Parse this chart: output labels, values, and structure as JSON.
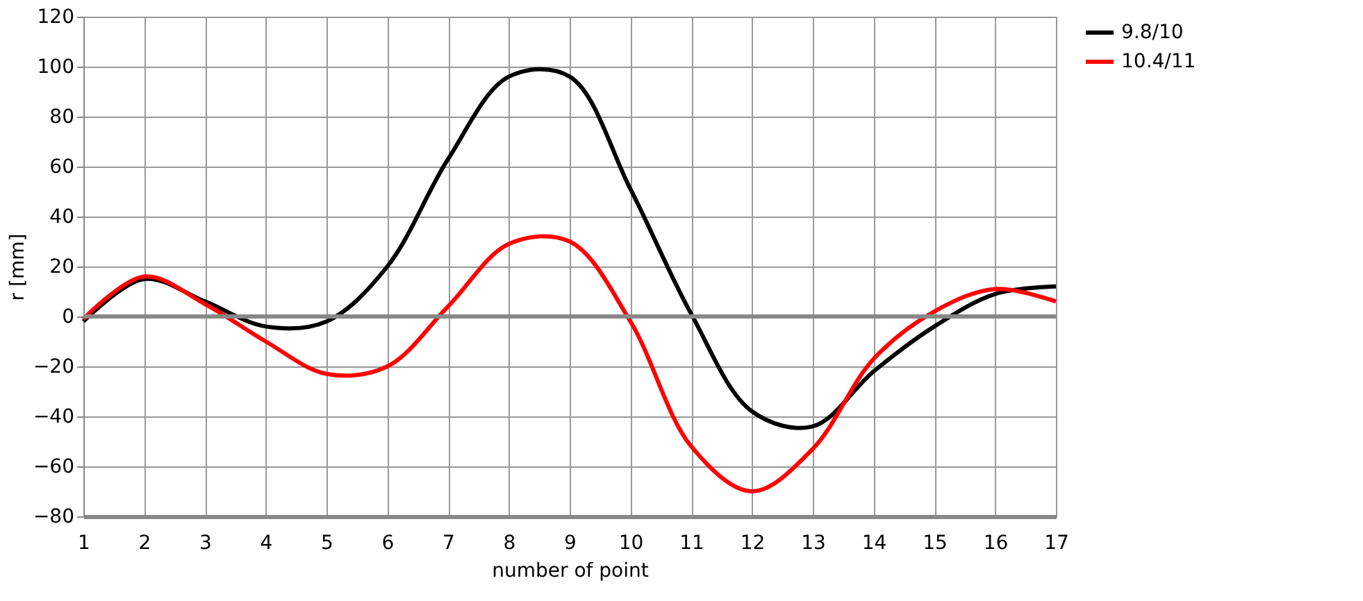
{
  "chart_data": {
    "type": "line",
    "xlabel": "number  of  point",
    "ylabel": "r [mm]",
    "x": [
      1,
      2,
      3,
      4,
      5,
      6,
      7,
      8,
      9,
      10,
      11,
      12,
      13,
      14,
      15,
      16,
      17
    ],
    "xlim": [
      1,
      17
    ],
    "xticks": [
      1,
      2,
      3,
      4,
      5,
      6,
      7,
      8,
      9,
      10,
      11,
      12,
      13,
      14,
      15,
      16,
      17
    ],
    "ylim": [
      -80,
      120
    ],
    "yticks": [
      -80,
      -60,
      -40,
      -20,
      0,
      20,
      40,
      60,
      80,
      100,
      120
    ],
    "grid": true,
    "legend": "right",
    "marker": "none",
    "line_style": "solid",
    "series": [
      {
        "name": "9.8/10",
        "color": "#000000",
        "values": [
          -2,
          15,
          6,
          -4,
          -2,
          20,
          63,
          96,
          96,
          51,
          1,
          -38,
          -44,
          -22,
          -4,
          9,
          12
        ]
      },
      {
        "name": "10.4/11",
        "color": "#ff0000",
        "values": [
          -1,
          16,
          5,
          -10,
          -23,
          -20,
          4,
          29,
          30,
          -2,
          -52,
          -70,
          -53,
          -17,
          2,
          11,
          6
        ]
      }
    ]
  }
}
